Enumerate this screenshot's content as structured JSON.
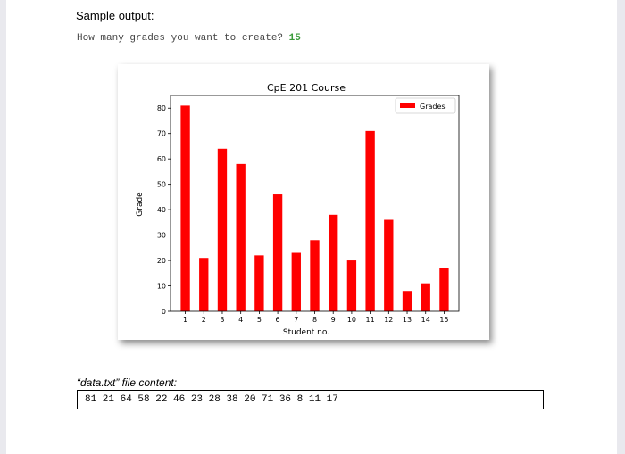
{
  "document": {
    "heading": "Sample output:",
    "prompt_text": "How many grades you want to create? ",
    "prompt_answer": "15",
    "file_label": "“data.txt” file content:",
    "file_content": "81 21 64 58 22 46 23 28 38 20 71 36 8 11 17"
  },
  "colors": {
    "bar": "#ff0000",
    "answer_text": "#3a9b3a"
  },
  "chart_data": {
    "type": "bar",
    "title": "CpE 201 Course",
    "xlabel": "Student no.",
    "ylabel": "Grade",
    "categories": [
      "1",
      "2",
      "3",
      "4",
      "5",
      "6",
      "7",
      "8",
      "9",
      "10",
      "11",
      "12",
      "13",
      "14",
      "15"
    ],
    "series": [
      {
        "name": "Grades",
        "values": [
          81,
          21,
          64,
          58,
          22,
          46,
          23,
          28,
          38,
          20,
          71,
          36,
          8,
          11,
          17
        ]
      }
    ],
    "ylim": [
      0,
      85
    ],
    "yticks": [
      0,
      10,
      20,
      30,
      40,
      50,
      60,
      70,
      80
    ],
    "grid": false,
    "legend": "top-right"
  }
}
